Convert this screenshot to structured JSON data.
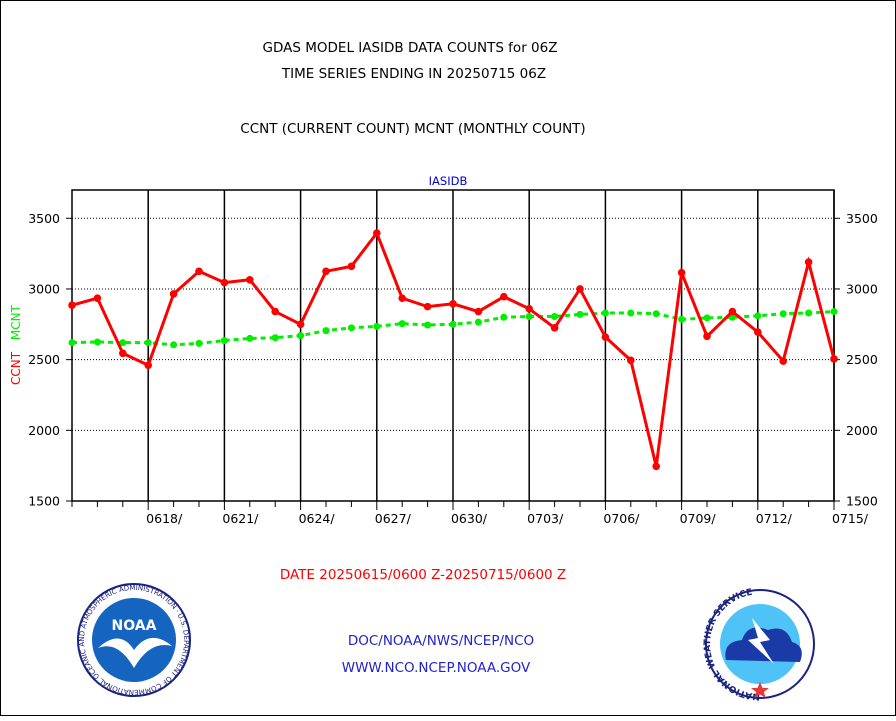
{
  "header": {
    "title_line1": "GDAS MODEL IASIDB DATA COUNTS for 06Z",
    "title_line2": "TIME SERIES ENDING IN 20250715 06Z",
    "subtitle": "CCNT (CURRENT COUNT) MCNT (MONTHLY COUNT)"
  },
  "footer": {
    "date_range": "DATE 20250615/0600 Z-20250715/0600 Z",
    "org_line1": "DOC/NOAA/NWS/NCEP/NCO",
    "org_line2": "WWW.NCO.NCEP.NOAA.GOV"
  },
  "logos": {
    "noaa_text": "NOAA",
    "noaa_ring_text": "NATIONAL OCEANIC AND ATMOSPHERIC ADMINISTRATION · U.S. DEPARTMENT OF COMMERCE ·",
    "nws_ring_text": "NATIONAL WEATHER SERVICE"
  },
  "colors": {
    "ccnt": "#ff0000",
    "mcnt": "#00ee00",
    "panel_title": "#0000cc",
    "footer_blue": "#2222cc",
    "footer_red": "#ff0000"
  },
  "chart_data": {
    "type": "line",
    "title": "IASIDB",
    "ylabel_ccnt": "CCNT",
    "ylabel_mcnt": "MCNT",
    "ylim": [
      1500,
      3700
    ],
    "yticks": [
      1500,
      2000,
      2500,
      3000,
      3500
    ],
    "x_start": "20250615/0600",
    "x_end": "20250715/0600",
    "xtick_labels": [
      "0618/",
      "0621/",
      "0624/",
      "0627/",
      "0630/",
      "0703/",
      "0706/",
      "0709/",
      "0712/",
      "0715/"
    ],
    "xtick_days": [
      3,
      6,
      9,
      12,
      15,
      18,
      21,
      24,
      27,
      30
    ],
    "grid": true,
    "series": [
      {
        "name": "CCNT",
        "x": [
          0,
          1,
          2,
          3,
          4,
          5,
          6,
          7,
          8,
          9,
          10,
          11,
          12,
          13,
          14,
          15,
          16,
          17,
          18,
          19,
          20,
          21,
          22,
          23,
          24,
          25,
          26,
          27,
          28,
          29,
          30
        ],
        "values": [
          2885,
          2935,
          2545,
          2460,
          2965,
          3125,
          3045,
          3065,
          2840,
          2750,
          3125,
          3160,
          3395,
          2935,
          2875,
          2895,
          2840,
          2945,
          2860,
          2725,
          3000,
          2660,
          2495,
          1745,
          3115,
          2665,
          2840,
          2695,
          2490,
          3190,
          2505
        ]
      },
      {
        "name": "MCNT",
        "x": [
          0,
          1,
          2,
          3,
          4,
          5,
          6,
          7,
          8,
          9,
          10,
          11,
          12,
          13,
          14,
          15,
          16,
          17,
          18,
          19,
          20,
          21,
          22,
          23,
          24,
          25,
          26,
          27,
          28,
          29,
          30
        ],
        "values": [
          2620,
          2625,
          2620,
          2620,
          2605,
          2615,
          2635,
          2650,
          2655,
          2670,
          2705,
          2725,
          2735,
          2755,
          2745,
          2750,
          2765,
          2800,
          2805,
          2805,
          2820,
          2830,
          2830,
          2825,
          2785,
          2795,
          2800,
          2810,
          2825,
          2830,
          2840
        ]
      }
    ]
  }
}
